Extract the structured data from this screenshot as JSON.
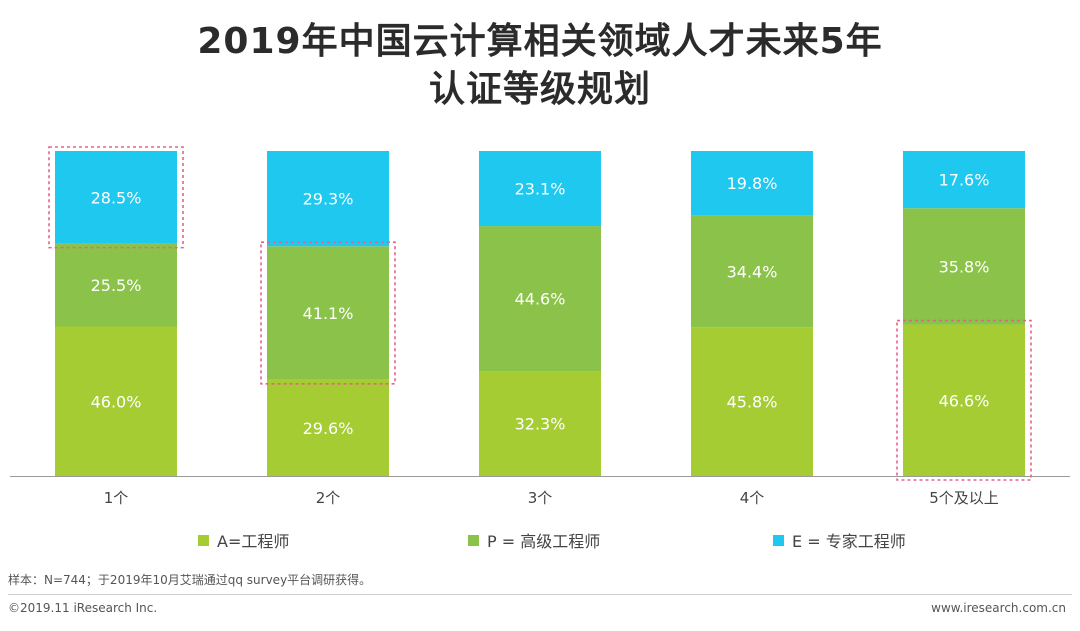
{
  "title_line1": "2019年中国云计算相关领域人才未来5年",
  "title_line2": "认证等级规划",
  "colors": {
    "A": "#a5cd33",
    "P": "#8bc34a",
    "E": "#1ec8ef",
    "highlight": "#e8618c",
    "axis": "#9a9a9a"
  },
  "chart_data": {
    "type": "bar",
    "stacked": true,
    "normalized": true,
    "categories": [
      "1个",
      "2个",
      "3个",
      "4个",
      "5个及以上"
    ],
    "series": [
      {
        "key": "A",
        "name": "A=工程师",
        "values": [
          46.0,
          29.6,
          32.3,
          45.8,
          46.6
        ]
      },
      {
        "key": "P",
        "name": "P = 高级工程师",
        "values": [
          25.5,
          41.1,
          44.6,
          34.4,
          35.8
        ]
      },
      {
        "key": "E",
        "name": "E = 专家工程师",
        "values": [
          28.5,
          29.3,
          23.1,
          19.8,
          17.6
        ]
      }
    ],
    "unit": "%",
    "ylim": [
      0,
      100
    ],
    "highlighted": [
      {
        "category": "1个",
        "series": "E"
      },
      {
        "category": "2个",
        "series": "P"
      },
      {
        "category": "5个及以上",
        "series": "A"
      }
    ]
  },
  "legend": [
    {
      "key": "A",
      "label": "A=工程师"
    },
    {
      "key": "P",
      "label": "P = 高级工程师"
    },
    {
      "key": "E",
      "label": "E = 专家工程师"
    }
  ],
  "note": "样本：N=744；于2019年10月艾瑞通过qq survey平台调研获得。",
  "footer": {
    "copyright": "©2019.11 iResearch Inc.",
    "website": "www.iresearch.com.cn"
  }
}
